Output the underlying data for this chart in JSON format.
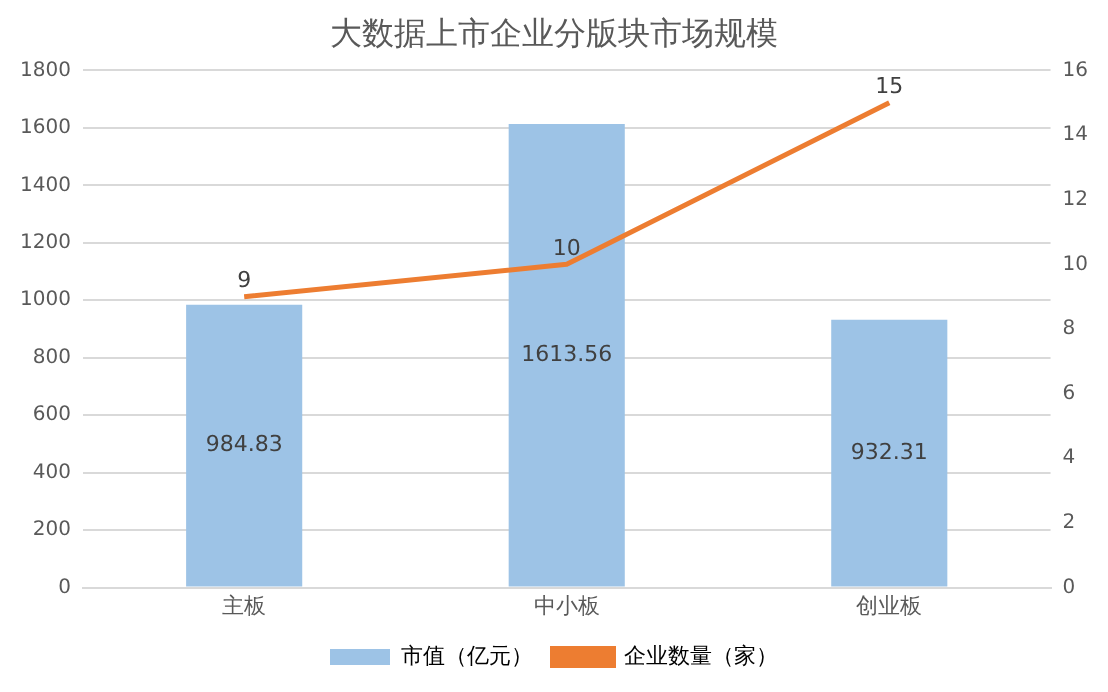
{
  "chart_data": {
    "type": "bar",
    "title": "大数据上市企业分版块市场规模",
    "categories": [
      "主板",
      "中小板",
      "创业板"
    ],
    "series": [
      {
        "name": "市值（亿元）",
        "color": "#9dc3e6",
        "values": [
          984.83,
          1613.56,
          932.31
        ]
      },
      {
        "name": "企业数量（家）",
        "type": "line",
        "color": "#ed7d31",
        "axis": "y2",
        "values": [
          9,
          10,
          15
        ],
        "marker": "none"
      }
    ],
    "ylim": [
      0,
      1800
    ],
    "yticks": [
      0,
      200,
      400,
      600,
      800,
      1000,
      1200,
      1400,
      1600,
      1800
    ],
    "y2lim": [
      0,
      16
    ],
    "y2ticks": [
      0,
      2,
      4,
      6,
      8,
      10,
      12,
      14,
      16
    ],
    "grid": "y",
    "legend": "bottom",
    "data_labels": true
  }
}
